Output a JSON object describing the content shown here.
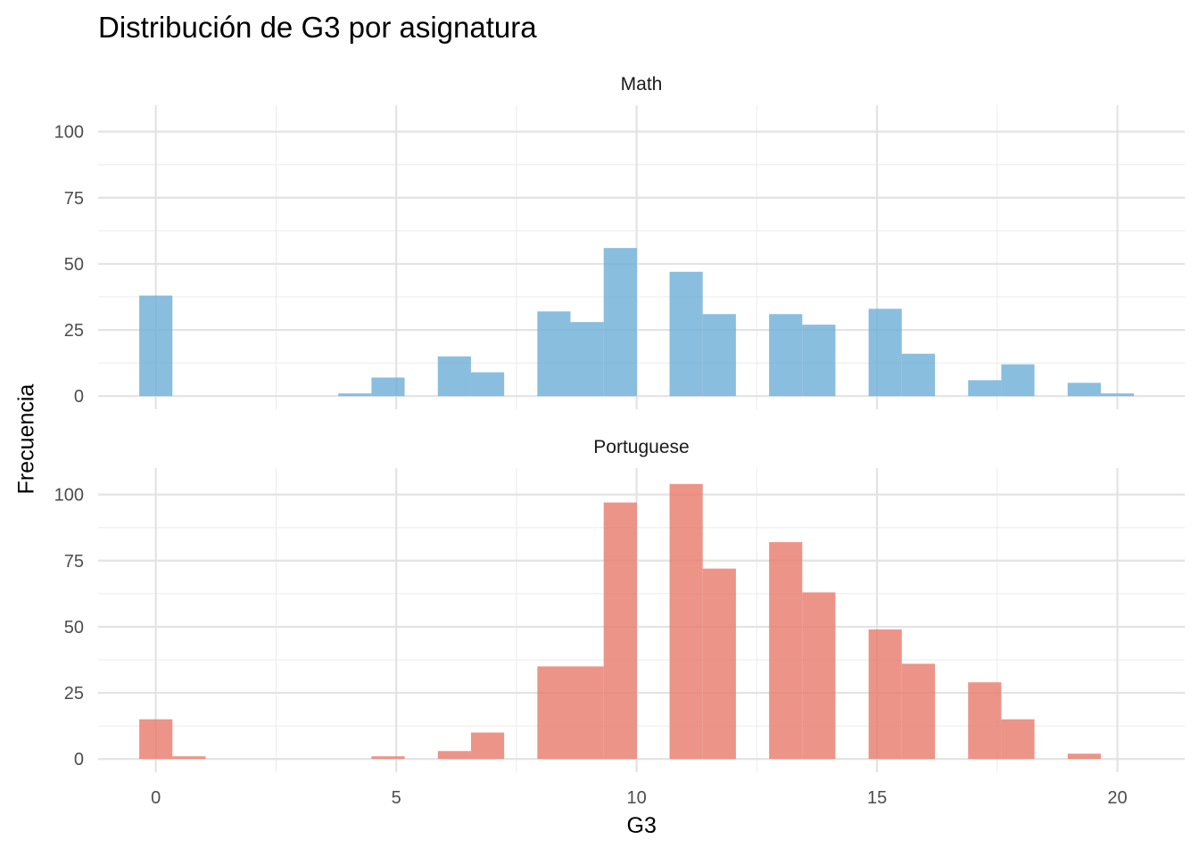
{
  "chart_data": {
    "type": "bar",
    "title": "Distribución de G3 por asignatura",
    "xlabel": "G3",
    "ylabel": "Frecuencia",
    "xlim": [
      -1.2,
      21.4
    ],
    "ylim": [
      -5,
      110
    ],
    "x_ticks": [
      0,
      5,
      10,
      15,
      20
    ],
    "y_ticks": [
      0,
      25,
      50,
      75,
      100
    ],
    "bin_width": 0.69,
    "grid": true,
    "legend": "none",
    "panels": [
      {
        "name": "Math",
        "color": "#6BAED6",
        "bins": [
          {
            "x": 0.0,
            "y": 38
          },
          {
            "x": 4.14,
            "y": 1
          },
          {
            "x": 4.83,
            "y": 7
          },
          {
            "x": 6.21,
            "y": 15
          },
          {
            "x": 6.9,
            "y": 9
          },
          {
            "x": 8.28,
            "y": 32
          },
          {
            "x": 8.97,
            "y": 28
          },
          {
            "x": 9.66,
            "y": 56
          },
          {
            "x": 11.03,
            "y": 47
          },
          {
            "x": 11.72,
            "y": 31
          },
          {
            "x": 13.1,
            "y": 31
          },
          {
            "x": 13.79,
            "y": 27
          },
          {
            "x": 15.17,
            "y": 33
          },
          {
            "x": 15.86,
            "y": 16
          },
          {
            "x": 17.24,
            "y": 6
          },
          {
            "x": 17.93,
            "y": 12
          },
          {
            "x": 19.31,
            "y": 5
          },
          {
            "x": 20.0,
            "y": 1
          }
        ]
      },
      {
        "name": "Portuguese",
        "color": "#E9796A",
        "bins": [
          {
            "x": 0.0,
            "y": 15
          },
          {
            "x": 0.69,
            "y": 1
          },
          {
            "x": 4.83,
            "y": 1
          },
          {
            "x": 6.21,
            "y": 3
          },
          {
            "x": 6.9,
            "y": 10
          },
          {
            "x": 8.28,
            "y": 35
          },
          {
            "x": 8.97,
            "y": 35
          },
          {
            "x": 9.66,
            "y": 97
          },
          {
            "x": 11.03,
            "y": 104
          },
          {
            "x": 11.72,
            "y": 72
          },
          {
            "x": 13.1,
            "y": 82
          },
          {
            "x": 13.79,
            "y": 63
          },
          {
            "x": 15.17,
            "y": 49
          },
          {
            "x": 15.86,
            "y": 36
          },
          {
            "x": 17.24,
            "y": 29
          },
          {
            "x": 17.93,
            "y": 15
          },
          {
            "x": 19.31,
            "y": 2
          }
        ]
      }
    ]
  }
}
